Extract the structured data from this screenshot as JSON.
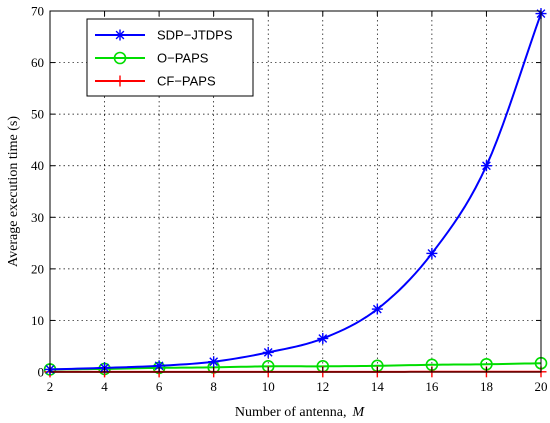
{
  "chart_data": {
    "type": "line",
    "title": "",
    "xlabel": "Number of antenna,",
    "xlabel_symbol": "M",
    "ylabel": "Average execution time (s)",
    "x": [
      2,
      4,
      6,
      8,
      10,
      12,
      14,
      16,
      18,
      20
    ],
    "xlim": [
      2,
      20
    ],
    "ylim": [
      0,
      70
    ],
    "xticks": [
      2,
      4,
      6,
      8,
      10,
      12,
      14,
      16,
      18,
      20
    ],
    "yticks": [
      0,
      10,
      20,
      30,
      40,
      50,
      60,
      70
    ],
    "grid": true,
    "legend_position": "top-left",
    "series": [
      {
        "name": "SDP−JTDPS",
        "color": "#0000ff",
        "marker": "asterisk",
        "values": [
          0.5,
          0.8,
          1.2,
          2.0,
          3.8,
          6.5,
          12.2,
          23.0,
          40.0,
          69.5
        ]
      },
      {
        "name": "O−PAPS",
        "color": "#00dd00",
        "marker": "circle",
        "values": [
          0.5,
          0.6,
          0.8,
          0.9,
          1.1,
          1.1,
          1.2,
          1.4,
          1.5,
          1.7
        ]
      },
      {
        "name": "CF−PAPS",
        "color": "#ff0000",
        "marker": "plus",
        "values": [
          0.02,
          0.02,
          0.02,
          0.03,
          0.03,
          0.03,
          0.03,
          0.04,
          0.04,
          0.04
        ]
      }
    ]
  }
}
